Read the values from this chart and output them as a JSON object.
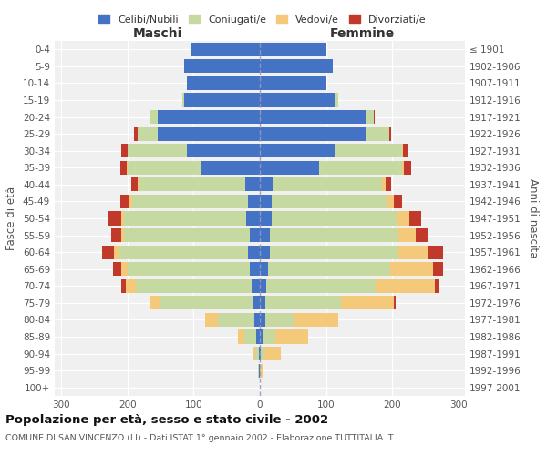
{
  "age_groups": [
    "0-4",
    "5-9",
    "10-14",
    "15-19",
    "20-24",
    "25-29",
    "30-34",
    "35-39",
    "40-44",
    "45-49",
    "50-54",
    "55-59",
    "60-64",
    "65-69",
    "70-74",
    "75-79",
    "80-84",
    "85-89",
    "90-94",
    "95-99",
    "100+"
  ],
  "birth_years": [
    "1997-2001",
    "1992-1996",
    "1987-1991",
    "1982-1986",
    "1977-1981",
    "1972-1976",
    "1967-1971",
    "1962-1966",
    "1957-1961",
    "1952-1956",
    "1947-1951",
    "1942-1946",
    "1937-1941",
    "1932-1936",
    "1927-1931",
    "1922-1926",
    "1917-1921",
    "1912-1916",
    "1907-1911",
    "1902-1906",
    "≤ 1901"
  ],
  "maschi": {
    "celibi": [
      105,
      115,
      110,
      115,
      155,
      155,
      110,
      90,
      22,
      18,
      20,
      15,
      18,
      15,
      12,
      10,
      8,
      5,
      2,
      1,
      0
    ],
    "coniugati": [
      0,
      0,
      0,
      2,
      10,
      30,
      90,
      110,
      160,
      175,
      185,
      190,
      195,
      185,
      175,
      140,
      55,
      18,
      5,
      2,
      0
    ],
    "vedovi": [
      0,
      0,
      0,
      0,
      0,
      0,
      0,
      1,
      2,
      4,
      5,
      5,
      8,
      10,
      15,
      15,
      20,
      10,
      3,
      0,
      0
    ],
    "divorziati": [
      0,
      0,
      0,
      0,
      2,
      5,
      10,
      10,
      10,
      14,
      20,
      15,
      18,
      12,
      8,
      2,
      0,
      0,
      0,
      0,
      0
    ]
  },
  "femmine": {
    "nubili": [
      100,
      110,
      100,
      115,
      160,
      160,
      115,
      90,
      20,
      18,
      18,
      15,
      15,
      12,
      10,
      8,
      8,
      5,
      2,
      0,
      0
    ],
    "coniugate": [
      0,
      0,
      0,
      3,
      12,
      35,
      100,
      125,
      165,
      175,
      190,
      195,
      195,
      185,
      165,
      115,
      45,
      18,
      5,
      0,
      0
    ],
    "vedove": [
      0,
      0,
      0,
      0,
      0,
      1,
      1,
      2,
      5,
      10,
      18,
      25,
      45,
      65,
      90,
      80,
      65,
      50,
      25,
      5,
      0
    ],
    "divorziate": [
      0,
      0,
      0,
      0,
      1,
      3,
      8,
      12,
      8,
      12,
      18,
      18,
      22,
      15,
      5,
      2,
      0,
      0,
      0,
      0,
      0
    ]
  },
  "colors": {
    "celibi_nubili": "#4472c4",
    "coniugati_e": "#c5d9a0",
    "vedovi_e": "#f5c97a",
    "divorziati_e": "#c0392b"
  },
  "title": "Popolazione per età, sesso e stato civile - 2002",
  "subtitle": "COMUNE DI SAN VINCENZO (LI) - Dati ISTAT 1° gennaio 2002 - Elaborazione TUTTITALIA.IT",
  "xlabel_left": "Maschi",
  "xlabel_right": "Femmine",
  "ylabel_left": "Fasce di età",
  "ylabel_right": "Anni di nascita",
  "xlim": 310,
  "legend_labels": [
    "Celibi/Nubili",
    "Coniugati/e",
    "Vedovi/e",
    "Divorziati/e"
  ],
  "bg_color": "#f0f0f0"
}
